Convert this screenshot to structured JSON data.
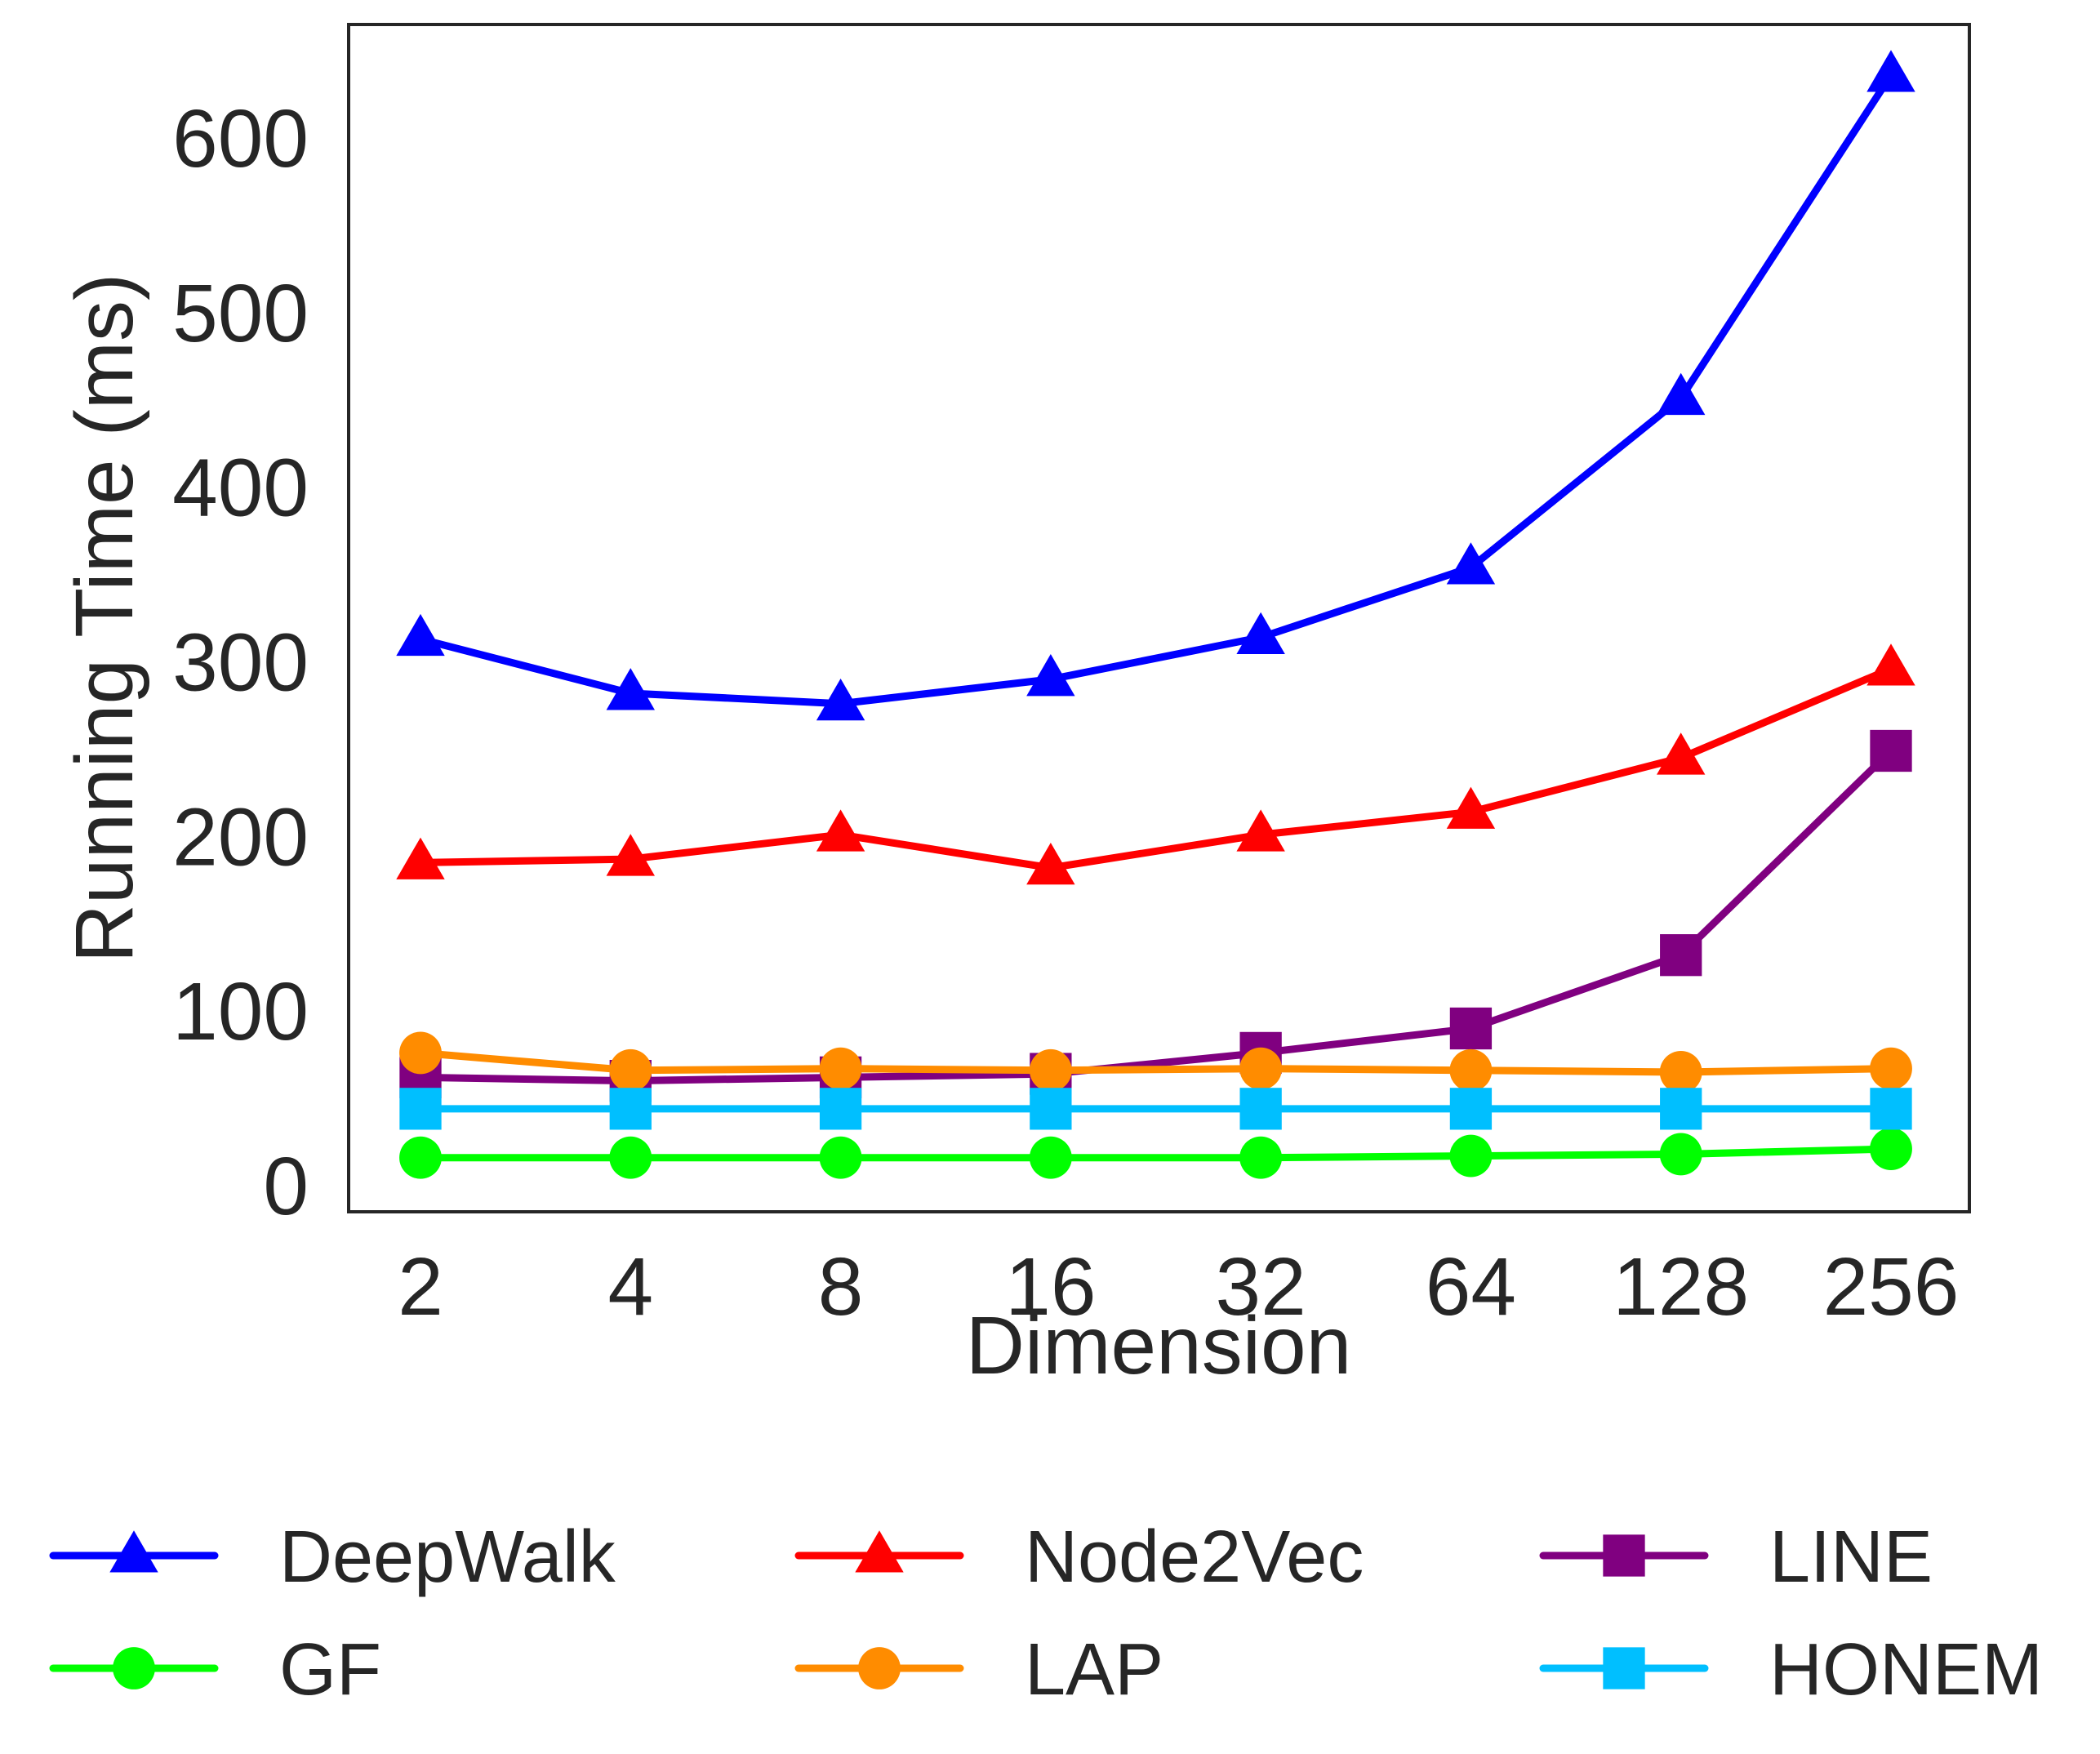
{
  "chart_data": {
    "type": "line",
    "xlabel": "Dimension",
    "ylabel": "Running Time (ms)",
    "categories": [
      "2",
      "4",
      "8",
      "16",
      "32",
      "64",
      "128",
      "256"
    ],
    "ylim": [
      -15,
      665
    ],
    "yticks": [
      0,
      100,
      200,
      300,
      400,
      500,
      600
    ],
    "grid": false,
    "legend_position": "bottom",
    "series": [
      {
        "name": "DeepWalk",
        "color": "#0000ff",
        "marker": "triangle",
        "values": [
          313,
          282,
          276,
          290,
          314,
          354,
          451,
          636
        ]
      },
      {
        "name": "Node2Vec",
        "color": "#ff0000",
        "marker": "triangle",
        "values": [
          185,
          187,
          201,
          182,
          201,
          214,
          245,
          296
        ]
      },
      {
        "name": "LINE",
        "color": "#800080",
        "marker": "square",
        "values": [
          62,
          60,
          62,
          64,
          76,
          90,
          132,
          249
        ]
      },
      {
        "name": "GF",
        "color": "#00ff00",
        "marker": "circle",
        "values": [
          16,
          16,
          16,
          16,
          16,
          17,
          18,
          21
        ]
      },
      {
        "name": "LAP",
        "color": "#ff8c00",
        "marker": "circle",
        "values": [
          76,
          66,
          67,
          66,
          67,
          66,
          65,
          67
        ]
      },
      {
        "name": "HONEM",
        "color": "#00bfff",
        "marker": "square",
        "values": [
          44,
          44,
          44,
          44,
          44,
          44,
          44,
          44
        ]
      }
    ]
  }
}
